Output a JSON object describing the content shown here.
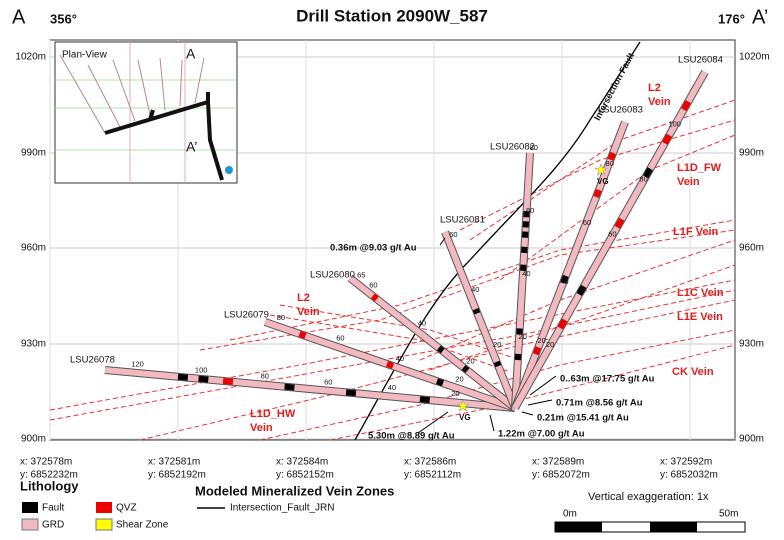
{
  "header": {
    "left_mark": "A",
    "left_azimuth": "356°",
    "title": "Drill Station 2090W_587",
    "right_azimuth": "176°",
    "right_mark": "A’"
  },
  "elevations": [
    "1020m",
    "990m",
    "960m",
    "930m",
    "900m"
  ],
  "inset": {
    "title": "Plan-View",
    "mark_a": "A",
    "mark_a_prime": "A’"
  },
  "holes": [
    {
      "name": "LSU26078",
      "depths": [
        "120",
        "100",
        "80",
        "60",
        "40",
        "20"
      ]
    },
    {
      "name": "LSU26079",
      "depths": [
        "80",
        "60",
        "40",
        "20"
      ]
    },
    {
      "name": "LSU26080",
      "depths": [
        "65",
        "60",
        "40",
        "20"
      ]
    },
    {
      "name": "LSU26081",
      "depths": [
        "60",
        "40",
        "20"
      ]
    },
    {
      "name": "LSU26082",
      "depths": [
        "80",
        "60",
        "40",
        "20"
      ]
    },
    {
      "name": "LSU26083",
      "depths": [
        "80",
        "60",
        "40",
        "20"
      ]
    },
    {
      "name": "LSU26084",
      "depths": [
        "100",
        "80",
        "60",
        "40",
        "20"
      ]
    }
  ],
  "fault_label": "Intersection Fault",
  "veins": [
    {
      "name": "L2",
      "suffix": "Vein"
    },
    {
      "name": "L1D_FW",
      "suffix": "Vein"
    },
    {
      "name": "L1F Vein"
    },
    {
      "name": "L1C Vein"
    },
    {
      "name": "L1E Vein"
    },
    {
      "name": "CK Vein"
    },
    {
      "name": "L2",
      "suffix": "Vein"
    },
    {
      "name": "L1D_HW",
      "suffix": "Vein"
    }
  ],
  "intercepts": [
    "0.36m @9.03 g/t Au",
    "0..63m @17.75 g/t Au",
    "0.71m @8.56 g/t Au",
    "0.21m @15.41 g/t Au",
    "5.30m @8.89 g/t Au",
    "1.22m @7.00 g/t Au"
  ],
  "vg_labels": [
    "VG",
    "VG"
  ],
  "coordinates": [
    {
      "x": "x: 372578m",
      "y": "y: 6852232m"
    },
    {
      "x": "x: 372581m",
      "y": "y: 6852192m"
    },
    {
      "x": "x: 372584m",
      "y": "y: 6852152m"
    },
    {
      "x": "x: 372586m",
      "y": "y: 6852112m"
    },
    {
      "x": "x: 372589m",
      "y": "y: 6852072m"
    },
    {
      "x": "x: 372592m",
      "y": "y: 6852032m"
    }
  ],
  "legend": {
    "lithology_title": "Lithology",
    "items": [
      "Fault",
      "QVZ",
      "GRD",
      "Shear Zone"
    ],
    "veins_title": "Modeled Mineralized Vein Zones",
    "fault_line": "Intersection_Fault_JRN",
    "exaggeration": "Vertical exaggeration: 1x",
    "scale_start": "0m",
    "scale_end": "50m"
  }
}
